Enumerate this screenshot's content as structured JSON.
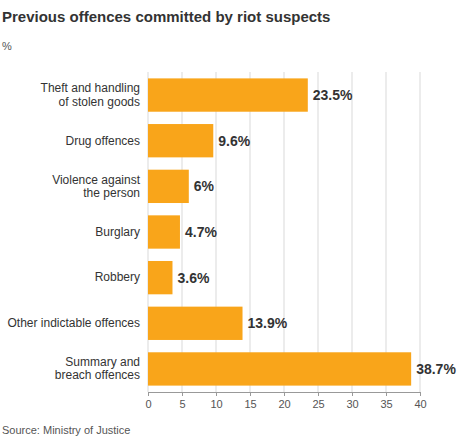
{
  "chart_data": {
    "type": "bar",
    "orientation": "horizontal",
    "title": "Previous offences committed by riot suspects",
    "subtitle": "%",
    "source": "Source: Ministry of Justice",
    "categories": [
      "Theft and handling of stolen goods",
      "Drug offences",
      "Violence against the person",
      "Burglary",
      "Robbery",
      "Other indictable offences",
      "Summary and breach offences"
    ],
    "values": [
      23.5,
      9.6,
      6,
      4.7,
      3.6,
      13.9,
      38.7
    ],
    "value_labels": [
      "23.5%",
      "9.6%",
      "6%",
      "4.7%",
      "3.6%",
      "13.9%",
      "38.7%"
    ],
    "color": "#f9a51a",
    "xlim": [
      0,
      40
    ],
    "xticks": [
      0,
      5,
      10,
      15,
      20,
      25,
      30,
      35,
      40
    ],
    "grid": true,
    "data_labels": true
  }
}
